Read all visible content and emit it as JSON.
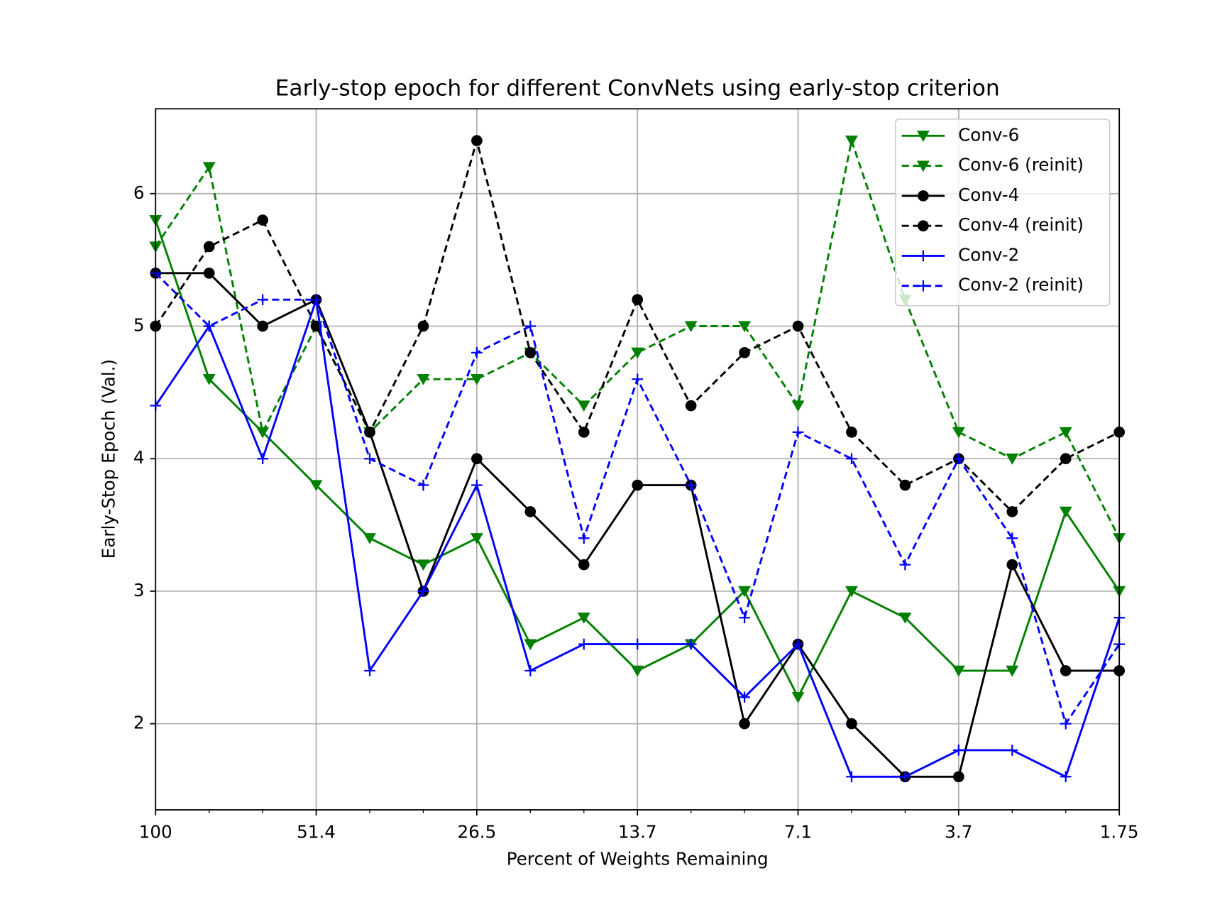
{
  "chart_data": {
    "type": "line",
    "title": "Early-stop epoch for different ConvNets using early-stop criterion",
    "x_label": "Percent of Weights Remaining",
    "y_label": "Early-Stop Epoch (Val.)",
    "categories": [
      "100",
      null,
      null,
      "51.4",
      null,
      null,
      "26.5",
      null,
      null,
      "13.7",
      null,
      null,
      "7.1",
      null,
      null,
      "3.7",
      null,
      null,
      "1.75"
    ],
    "ylim": [
      1.35,
      6.64
    ],
    "yticks": [
      2,
      3,
      4,
      5,
      6
    ],
    "grid": true,
    "legend": "upper right",
    "series": [
      {
        "name": "Conv-6",
        "color": "#008000",
        "marker": "triangle",
        "dashed": false,
        "values": [
          5.8,
          4.6,
          4.2,
          3.8,
          3.4,
          3.2,
          3.4,
          2.6,
          2.8,
          2.4,
          2.6,
          3.0,
          2.2,
          3.0,
          2.8,
          2.4,
          2.4,
          3.6,
          3.0
        ]
      },
      {
        "name": "Conv-6 (reinit)",
        "color": "#008000",
        "marker": "triangle",
        "dashed": true,
        "values": [
          5.6,
          6.2,
          4.2,
          5.0,
          4.2,
          4.6,
          4.6,
          4.8,
          4.4,
          4.8,
          5.0,
          5.0,
          4.4,
          6.4,
          5.2,
          4.2,
          4.0,
          4.2,
          3.4
        ]
      },
      {
        "name": "Conv-4",
        "color": "#000000",
        "marker": "circle",
        "dashed": false,
        "values": [
          5.4,
          5.4,
          5.0,
          5.2,
          4.2,
          3.0,
          4.0,
          3.6,
          3.2,
          3.8,
          3.8,
          2.0,
          2.6,
          2.0,
          1.6,
          1.6,
          3.2,
          2.4,
          2.4
        ]
      },
      {
        "name": "Conv-4 (reinit)",
        "color": "#000000",
        "marker": "circle",
        "dashed": true,
        "values": [
          5.0,
          5.6,
          5.8,
          5.0,
          4.2,
          5.0,
          6.4,
          4.8,
          4.2,
          5.2,
          4.4,
          4.8,
          5.0,
          4.2,
          3.8,
          4.0,
          3.6,
          4.0,
          4.2
        ]
      },
      {
        "name": "Conv-2",
        "color": "#0000ff",
        "marker": "plus",
        "dashed": false,
        "values": [
          4.4,
          5.0,
          4.0,
          5.2,
          2.4,
          3.0,
          3.8,
          2.4,
          2.6,
          2.6,
          2.6,
          2.2,
          2.6,
          1.6,
          1.6,
          1.8,
          1.8,
          1.6,
          2.8
        ]
      },
      {
        "name": "Conv-2 (reinit)",
        "color": "#0000ff",
        "marker": "plus",
        "dashed": true,
        "values": [
          5.4,
          5.0,
          5.2,
          5.2,
          4.0,
          3.8,
          4.8,
          5.0,
          3.4,
          4.6,
          3.8,
          2.8,
          4.2,
          4.0,
          3.2,
          4.0,
          3.4,
          2.0,
          2.6
        ]
      }
    ]
  }
}
